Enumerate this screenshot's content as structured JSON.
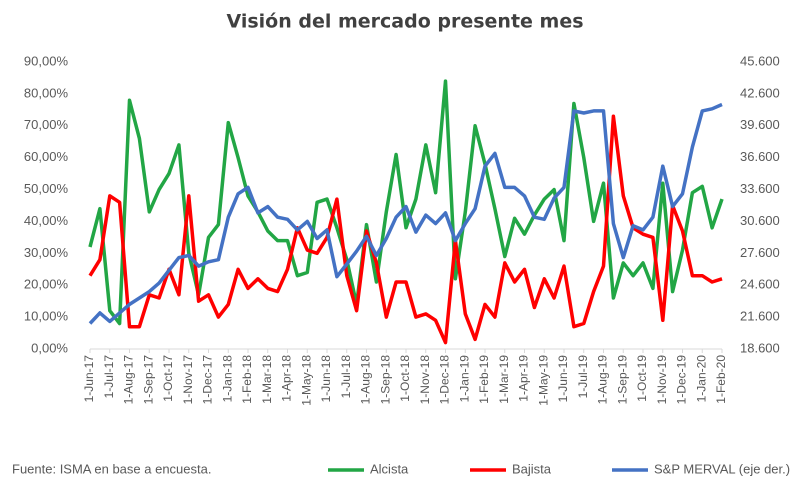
{
  "chart_data": {
    "type": "line",
    "title": "Visión del mercado presente mes",
    "source": "Fuente:  ISMA en base a encuesta.",
    "categories": [
      "1-Jun-17",
      null,
      "1-Jul-17",
      null,
      "1-Aug-17",
      null,
      "1-Sep-17",
      null,
      "1-Oct-17",
      null,
      "1-Nov-17",
      null,
      "1-Dec-17",
      null,
      "1-Jan-18",
      null,
      "1-Feb-18",
      null,
      "1-Mar-18",
      null,
      "1-Apr-18",
      null,
      "1-May-18",
      null,
      "1-Jun-18",
      null,
      "1-Jul-18",
      null,
      "1-Aug-18",
      null,
      "1-Sep-18",
      null,
      "1-Oct-18",
      null,
      "1-Nov-18",
      null,
      "1-Dec-18",
      null,
      "1-Jan-19",
      null,
      "1-Feb-19",
      null,
      "1-Mar-19",
      null,
      "1-Apr-19",
      null,
      "1-May-19",
      null,
      "1-Jun-19",
      null,
      "1-Jul-19",
      null,
      "1-Aug-19",
      null,
      "1-Sep-19",
      null,
      "1-Oct-19",
      null,
      "1-Nov-19",
      null,
      "1-Dec-19",
      null,
      "1-Jan-20",
      null,
      "1-Feb-20"
    ],
    "series": [
      {
        "name": "Alcista",
        "color": "#22a645",
        "values": [
          32,
          44,
          12,
          8,
          78,
          66,
          43,
          50,
          55,
          64,
          30,
          17,
          35,
          39,
          71,
          60,
          48,
          43,
          37,
          34,
          34,
          23,
          24,
          46,
          47,
          38,
          28,
          14,
          39,
          21,
          43,
          61,
          38,
          47,
          64,
          49,
          84,
          22,
          43,
          70,
          58,
          44,
          29,
          41,
          36,
          42,
          47,
          50,
          34,
          77,
          60,
          40,
          52,
          16,
          27,
          23,
          27,
          19,
          52,
          18,
          31,
          49,
          51,
          38,
          47
        ]
      },
      {
        "name": "Bajista",
        "color": "#ff0000",
        "values": [
          23,
          28,
          48,
          46,
          7,
          7,
          17,
          16,
          25,
          17,
          48,
          15,
          17,
          10,
          14,
          25,
          19,
          22,
          19,
          18,
          25,
          38,
          31,
          30,
          35,
          47,
          23,
          12,
          37,
          27,
          10,
          21,
          21,
          10,
          11,
          9,
          2,
          34,
          11,
          3,
          14,
          10,
          27,
          21,
          25,
          13,
          22,
          16,
          26,
          7,
          8,
          18,
          26,
          73,
          48,
          38,
          36,
          35,
          9,
          45,
          37,
          23,
          23,
          21,
          22
        ]
      },
      {
        "name": "S&P MERVAL (eje der.)",
        "color": "#4472c4",
        "axis": "y2",
        "values": [
          21000,
          22000,
          21200,
          22000,
          22800,
          23400,
          24000,
          24800,
          26000,
          27200,
          27400,
          26400,
          26800,
          27000,
          31000,
          33200,
          33800,
          31400,
          32000,
          31000,
          30800,
          29800,
          30600,
          29000,
          29800,
          25400,
          26600,
          27800,
          29200,
          27400,
          29000,
          31000,
          32000,
          29600,
          31200,
          30400,
          31400,
          28800,
          30400,
          31800,
          35800,
          37000,
          33800,
          33800,
          33000,
          31000,
          30800,
          32800,
          33800,
          41000,
          40800,
          41000,
          41000,
          30400,
          27200,
          30200,
          29800,
          31000,
          35800,
          32000,
          33200,
          37600,
          41000,
          41200,
          41600
        ]
      }
    ],
    "ylim": [
      0,
      90
    ],
    "yticks": [
      {
        "value": 0,
        "label": "0,00%"
      },
      {
        "value": 10,
        "label": "10,00%"
      },
      {
        "value": 20,
        "label": "20,00%"
      },
      {
        "value": 30,
        "label": "30,00%"
      },
      {
        "value": 40,
        "label": "40,00%"
      },
      {
        "value": 50,
        "label": "50,00%"
      },
      {
        "value": 60,
        "label": "60,00%"
      },
      {
        "value": 70,
        "label": "70,00%"
      },
      {
        "value": 80,
        "label": "80,00%"
      },
      {
        "value": 90,
        "label": "90,00%"
      }
    ],
    "y2lim": [
      18600,
      45600
    ],
    "y2ticks": [
      {
        "value": 18600,
        "label": "18.600"
      },
      {
        "value": 21600,
        "label": "21.600"
      },
      {
        "value": 24600,
        "label": "24.600"
      },
      {
        "value": 27600,
        "label": "27.600"
      },
      {
        "value": 30600,
        "label": "30.600"
      },
      {
        "value": 33600,
        "label": "33.600"
      },
      {
        "value": 36600,
        "label": "36.600"
      },
      {
        "value": 39600,
        "label": "39.600"
      },
      {
        "value": 42600,
        "label": "42.600"
      },
      {
        "value": 45600,
        "label": "45.600"
      }
    ]
  }
}
